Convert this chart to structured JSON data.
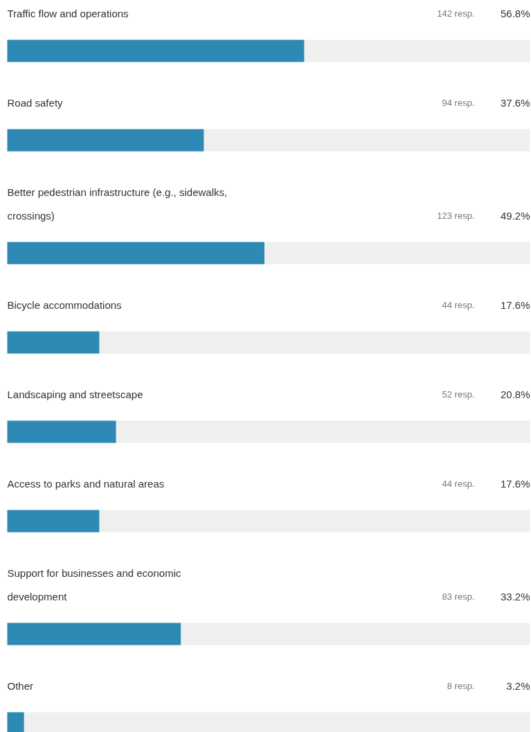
{
  "chart_data": {
    "type": "bar",
    "orientation": "horizontal",
    "categories": [
      "Traffic flow and operations",
      "Road safety",
      "Better pedestrian infrastructure (e.g., sidewalks, crossings)",
      "Bicycle accommodations",
      "Landscaping and streetscape",
      "Access to parks and natural areas",
      "Support for businesses and economic development",
      "Other"
    ],
    "values": [
      56.8,
      37.6,
      49.2,
      17.6,
      20.8,
      17.6,
      33.2,
      3.2
    ],
    "value_labels": [
      "56.8%",
      "37.6%",
      "49.2%",
      "17.6%",
      "20.8%",
      "17.6%",
      "33.2%",
      "3.2%"
    ],
    "color": "#2e89b4",
    "xlim": [
      0,
      100
    ],
    "tick_labels": false,
    "grid": false,
    "annotations": [
      "142 resp.",
      "94 resp.",
      "123 resp.",
      "44 resp.",
      "52 resp.",
      "44 resp.",
      "83 resp.",
      "8 resp."
    ]
  }
}
